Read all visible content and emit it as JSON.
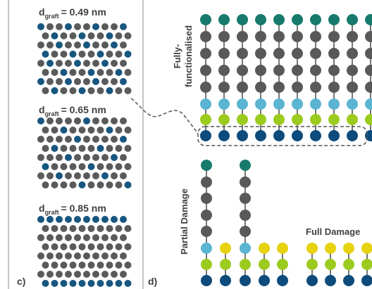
{
  "panel_c": {
    "label": "c)",
    "spacings": [
      {
        "symbol": "d",
        "subscript": "graft",
        "text": "= 0.49 nm"
      },
      {
        "symbol": "d",
        "subscript": "graft",
        "text": "= 0.65 nm"
      },
      {
        "symbol": "d",
        "subscript": "graft",
        "text": "= 0.85 nm"
      }
    ]
  },
  "panel_d": {
    "label": "d)",
    "fully_functionalised": [
      "Fully-",
      "functionalised"
    ],
    "partial_damage": "Partial Damage",
    "full_damage": "Full Damage"
  }
}
